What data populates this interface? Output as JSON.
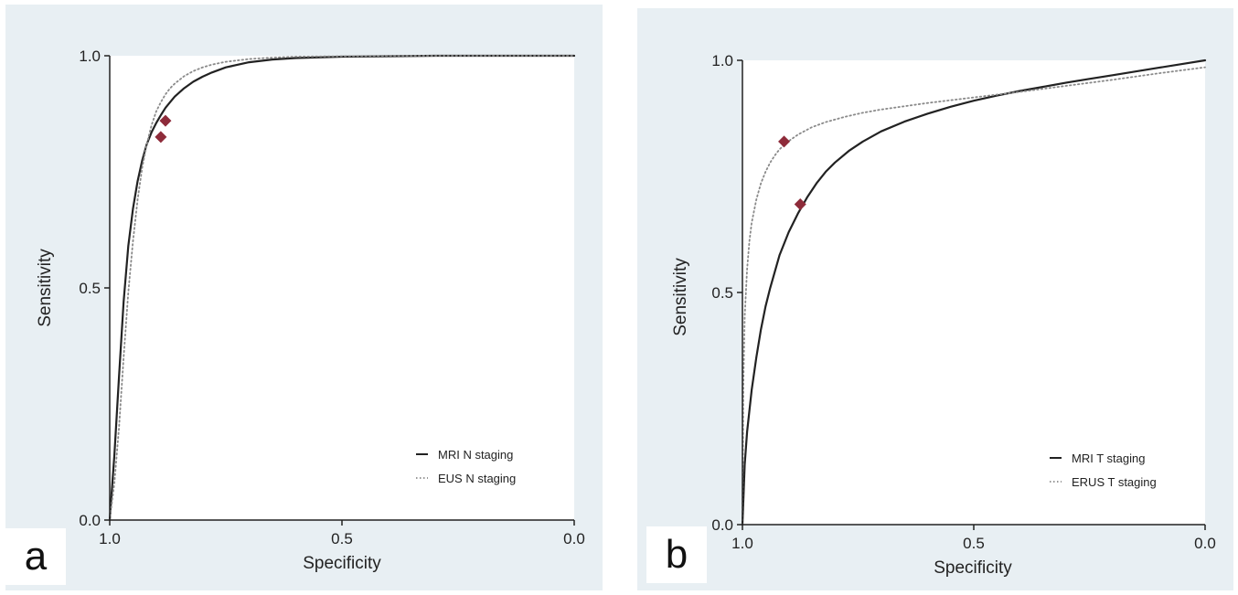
{
  "colors": {
    "panel_background": "#e8eff3",
    "plot_background": "#ffffff",
    "solid_line": "#222222",
    "dotted_line": "#8a8a8a",
    "marker": "#8e2b3a"
  },
  "chart_data": [
    {
      "type": "line",
      "panel_label": "a",
      "xlabel": "Specificity",
      "ylabel": "Sensitivity",
      "x_reversed": true,
      "xlim": [
        1.0,
        0.0
      ],
      "ylim": [
        0.0,
        1.0
      ],
      "x_ticks": [
        "1.0",
        "0.5",
        "0.0"
      ],
      "y_ticks": [
        "0.0",
        "0.5",
        "1.0"
      ],
      "grid": false,
      "legend_position": "bottom-right",
      "series": [
        {
          "name": "MRI N staging",
          "line_style": "solid",
          "x": [
            1.0,
            0.99,
            0.98,
            0.97,
            0.96,
            0.95,
            0.94,
            0.93,
            0.92,
            0.91,
            0.9,
            0.89,
            0.88,
            0.87,
            0.86,
            0.84,
            0.82,
            0.8,
            0.78,
            0.75,
            0.7,
            0.65,
            0.6,
            0.5,
            0.4,
            0.3,
            0.2,
            0.1,
            0.0
          ],
          "y": [
            0.0,
            0.14,
            0.31,
            0.47,
            0.59,
            0.67,
            0.73,
            0.775,
            0.81,
            0.835,
            0.855,
            0.872,
            0.888,
            0.9,
            0.912,
            0.93,
            0.944,
            0.955,
            0.964,
            0.975,
            0.986,
            0.992,
            0.995,
            0.998,
            0.999,
            1.0,
            1.0,
            1.0,
            1.0
          ]
        },
        {
          "name": "EUS N staging",
          "line_style": "dotted",
          "x": [
            1.0,
            0.99,
            0.98,
            0.97,
            0.96,
            0.95,
            0.94,
            0.93,
            0.92,
            0.91,
            0.9,
            0.89,
            0.88,
            0.87,
            0.86,
            0.84,
            0.82,
            0.8,
            0.78,
            0.75,
            0.7,
            0.65,
            0.6,
            0.5,
            0.4,
            0.3,
            0.2,
            0.1,
            0.0
          ],
          "y": [
            0.0,
            0.08,
            0.2,
            0.35,
            0.49,
            0.6,
            0.69,
            0.76,
            0.81,
            0.85,
            0.88,
            0.9,
            0.917,
            0.93,
            0.94,
            0.956,
            0.967,
            0.975,
            0.981,
            0.987,
            0.993,
            0.996,
            0.998,
            0.999,
            1.0,
            1.0,
            1.0,
            1.0,
            1.0
          ]
        }
      ],
      "points": [
        {
          "series": "EUS N staging",
          "x": 0.89,
          "y": 0.825
        },
        {
          "series": "MRI N staging",
          "x": 0.88,
          "y": 0.86
        }
      ]
    },
    {
      "type": "line",
      "panel_label": "b",
      "xlabel": "Specificity",
      "ylabel": "Sensitivity",
      "x_reversed": true,
      "xlim": [
        1.0,
        0.0
      ],
      "ylim": [
        0.0,
        1.0
      ],
      "x_ticks": [
        "1.0",
        "0.5",
        "0.0"
      ],
      "y_ticks": [
        "0.0",
        "0.5",
        "1.0"
      ],
      "grid": false,
      "legend_position": "bottom-right",
      "series": [
        {
          "name": "MRI T staging",
          "line_style": "solid",
          "x": [
            1.0,
            0.995,
            0.99,
            0.98,
            0.97,
            0.96,
            0.95,
            0.94,
            0.92,
            0.9,
            0.88,
            0.86,
            0.84,
            0.82,
            0.8,
            0.77,
            0.74,
            0.7,
            0.65,
            0.6,
            0.55,
            0.5,
            0.45,
            0.4,
            0.35,
            0.3,
            0.25,
            0.2,
            0.15,
            0.1,
            0.05,
            0.0
          ],
          "y": [
            0.0,
            0.13,
            0.2,
            0.29,
            0.36,
            0.42,
            0.47,
            0.51,
            0.58,
            0.63,
            0.67,
            0.705,
            0.735,
            0.76,
            0.78,
            0.805,
            0.825,
            0.847,
            0.868,
            0.885,
            0.9,
            0.913,
            0.924,
            0.934,
            0.943,
            0.952,
            0.96,
            0.968,
            0.976,
            0.984,
            0.992,
            1.0
          ]
        },
        {
          "name": "ERUS T staging",
          "line_style": "dotted",
          "x": [
            1.0,
            0.998,
            0.995,
            0.99,
            0.985,
            0.98,
            0.97,
            0.96,
            0.95,
            0.94,
            0.93,
            0.92,
            0.91,
            0.9,
            0.88,
            0.85,
            0.82,
            0.78,
            0.74,
            0.7,
            0.6,
            0.5,
            0.4,
            0.3,
            0.2,
            0.1,
            0.0
          ],
          "y": [
            0.0,
            0.3,
            0.45,
            0.55,
            0.61,
            0.65,
            0.7,
            0.735,
            0.76,
            0.78,
            0.795,
            0.808,
            0.818,
            0.826,
            0.84,
            0.856,
            0.867,
            0.878,
            0.887,
            0.894,
            0.908,
            0.92,
            0.932,
            0.945,
            0.958,
            0.972,
            0.985
          ]
        }
      ],
      "points": [
        {
          "series": "ERUS T staging",
          "x": 0.91,
          "y": 0.825
        },
        {
          "series": "MRI T staging",
          "x": 0.875,
          "y": 0.69
        }
      ]
    }
  ]
}
